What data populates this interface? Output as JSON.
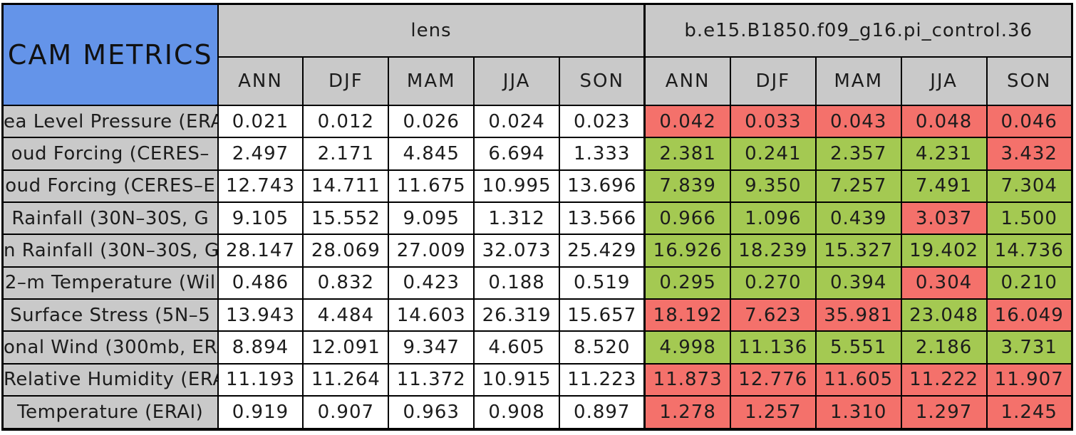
{
  "page_title": "CAM METRICS",
  "colors": {
    "title_bg": "#6494e9",
    "header_bg": "#c9c9c9",
    "better_green": "#a4c952",
    "worse_red": "#f4716b",
    "cell_white": "#ffffff",
    "border": "#000000",
    "text": "#1c1c1c"
  },
  "chart_data": {
    "type": "table",
    "title": "CAM METRICS",
    "column_groups": [
      {
        "label": "lens",
        "columns": [
          "ANN",
          "DJF",
          "MAM",
          "JJA",
          "SON"
        ]
      },
      {
        "label": "b.e15.B1850.f09_g16.pi_control.36",
        "columns": [
          "ANN",
          "DJF",
          "MAM",
          "JJA",
          "SON"
        ]
      }
    ],
    "rows": [
      {
        "label": "ea Level Pressure (ERA",
        "lens": [
          "0.021",
          "0.012",
          "0.026",
          "0.024",
          "0.023"
        ],
        "control": [
          "0.042",
          "0.033",
          "0.043",
          "0.048",
          "0.046"
        ],
        "control_cell_colors": [
          "red",
          "red",
          "red",
          "red",
          "red"
        ]
      },
      {
        "label": "oud Forcing (CERES–",
        "lens": [
          "2.497",
          "2.171",
          "4.845",
          "6.694",
          "1.333"
        ],
        "control": [
          "2.381",
          "0.241",
          "2.357",
          "4.231",
          "3.432"
        ],
        "control_cell_colors": [
          "green",
          "green",
          "green",
          "green",
          "red"
        ]
      },
      {
        "label": "oud Forcing (CERES–E",
        "lens": [
          "12.743",
          "14.711",
          "11.675",
          "10.995",
          "13.696"
        ],
        "control": [
          "7.839",
          "9.350",
          "7.257",
          "7.491",
          "7.304"
        ],
        "control_cell_colors": [
          "green",
          "green",
          "green",
          "green",
          "green"
        ]
      },
      {
        "label": "Rainfall (30N–30S, G",
        "lens": [
          "9.105",
          "15.552",
          "9.095",
          "1.312",
          "13.566"
        ],
        "control": [
          "0.966",
          "1.096",
          "0.439",
          "3.037",
          "1.500"
        ],
        "control_cell_colors": [
          "green",
          "green",
          "green",
          "red",
          "green"
        ]
      },
      {
        "label": "n Rainfall (30N–30S, G",
        "lens": [
          "28.147",
          "28.069",
          "27.009",
          "32.073",
          "25.429"
        ],
        "control": [
          "16.926",
          "18.239",
          "15.327",
          "19.402",
          "14.736"
        ],
        "control_cell_colors": [
          "green",
          "green",
          "green",
          "green",
          "green"
        ]
      },
      {
        "label": "2–m Temperature (Wil",
        "lens": [
          "0.486",
          "0.832",
          "0.423",
          "0.188",
          "0.519"
        ],
        "control": [
          "0.295",
          "0.270",
          "0.394",
          "0.304",
          "0.210"
        ],
        "control_cell_colors": [
          "green",
          "green",
          "green",
          "red",
          "green"
        ]
      },
      {
        "label": "Surface Stress (5N–5",
        "lens": [
          "13.943",
          "4.484",
          "14.603",
          "26.319",
          "15.657"
        ],
        "control": [
          "18.192",
          "7.623",
          "35.981",
          "23.048",
          "16.049"
        ],
        "control_cell_colors": [
          "red",
          "red",
          "red",
          "green",
          "red"
        ]
      },
      {
        "label": "onal Wind (300mb, ERA",
        "lens": [
          "8.894",
          "12.091",
          "9.347",
          "4.605",
          "8.520"
        ],
        "control": [
          "4.998",
          "11.136",
          "5.551",
          "2.186",
          "3.731"
        ],
        "control_cell_colors": [
          "green",
          "green",
          "green",
          "green",
          "green"
        ]
      },
      {
        "label": "Relative Humidity (ERAI",
        "lens": [
          "11.193",
          "11.264",
          "11.372",
          "10.915",
          "11.223"
        ],
        "control": [
          "11.873",
          "12.776",
          "11.605",
          "11.222",
          "11.907"
        ],
        "control_cell_colors": [
          "red",
          "red",
          "red",
          "red",
          "red"
        ]
      },
      {
        "label": "Temperature (ERAI)",
        "lens": [
          "0.919",
          "0.907",
          "0.963",
          "0.908",
          "0.897"
        ],
        "control": [
          "1.278",
          "1.257",
          "1.310",
          "1.297",
          "1.245"
        ],
        "control_cell_colors": [
          "red",
          "red",
          "red",
          "red",
          "red"
        ]
      }
    ]
  }
}
